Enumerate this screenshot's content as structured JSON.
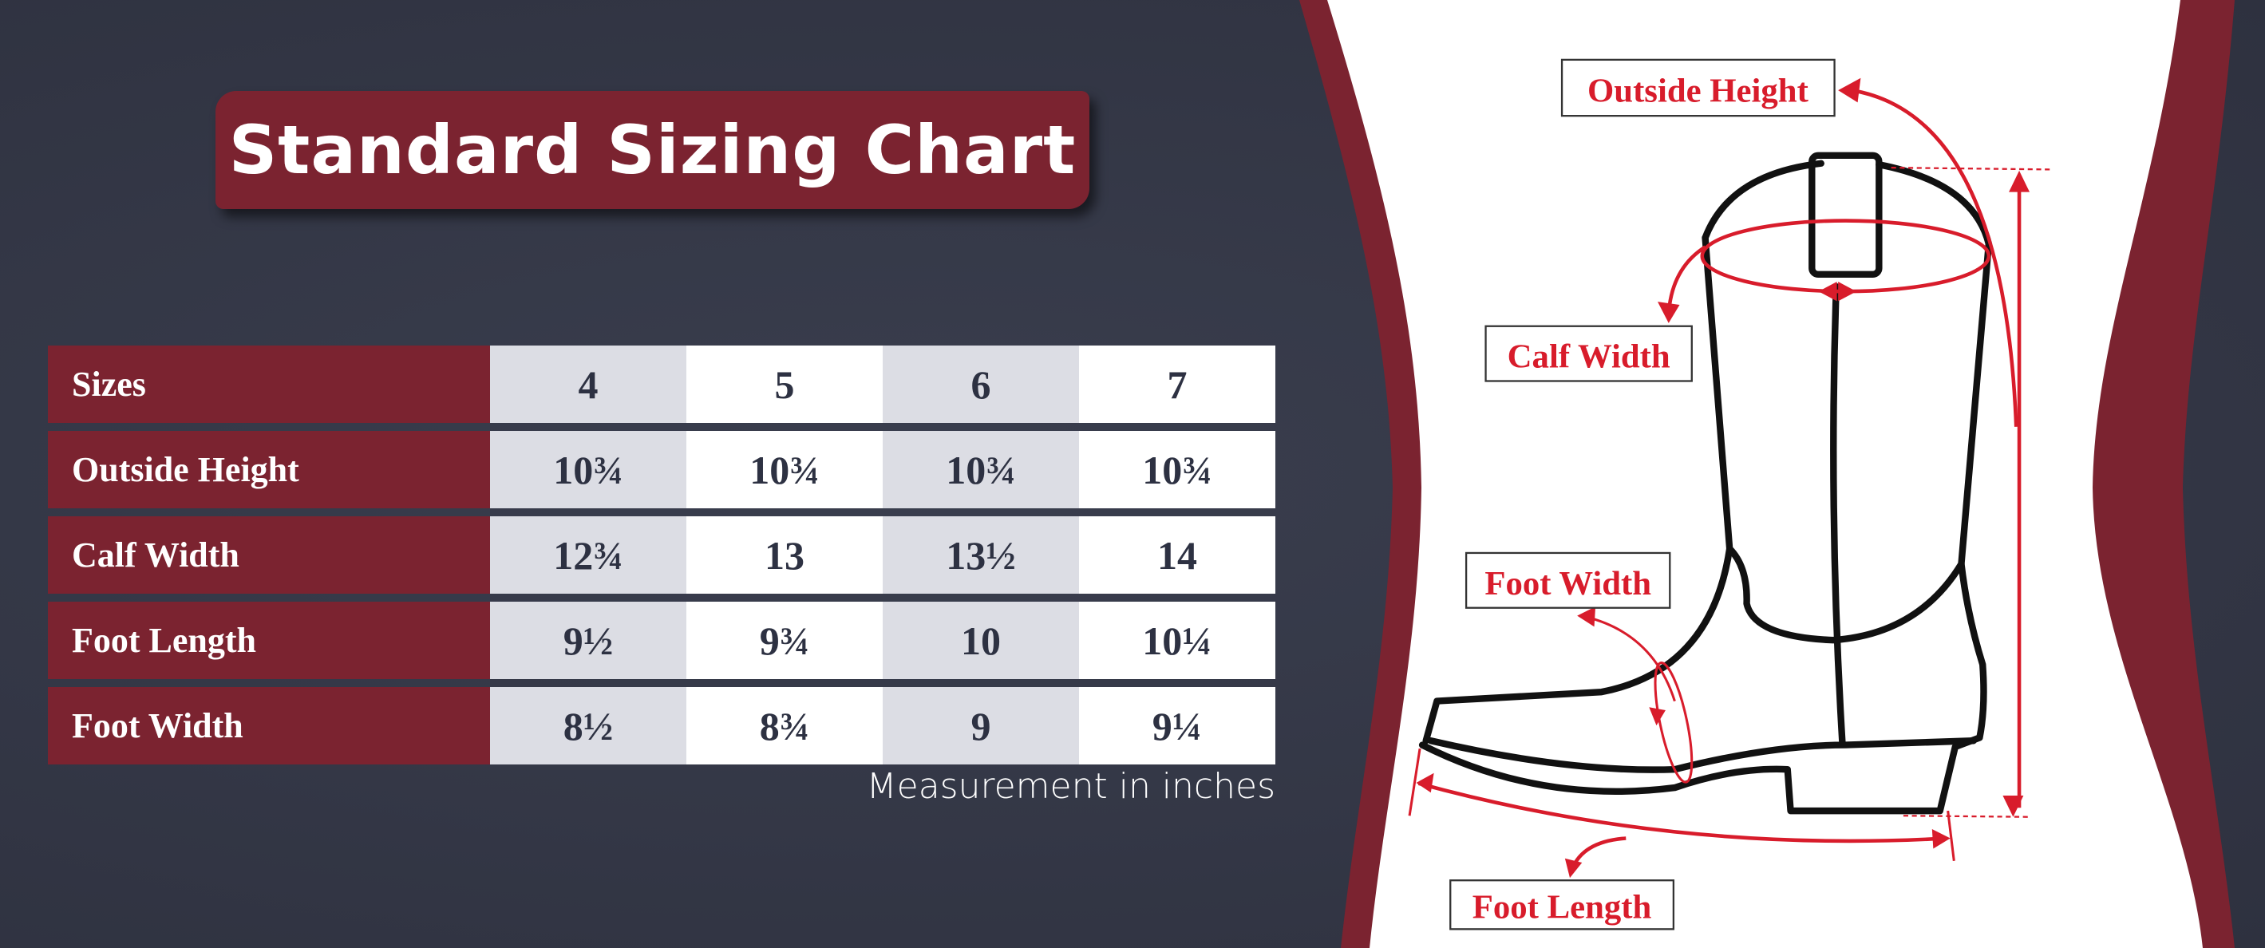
{
  "title": "Standard Sizing Chart",
  "table": {
    "header": {
      "label": "Sizes",
      "sizes": [
        "4",
        "5",
        "6",
        "7"
      ]
    },
    "rows": [
      {
        "label": "Outside Height",
        "values": [
          "10¾",
          "10¾",
          "10¾",
          "10¾"
        ]
      },
      {
        "label": "Calf Width",
        "values": [
          "12¾",
          "13",
          "13½",
          "14"
        ]
      },
      {
        "label": "Foot Length",
        "values": [
          "9½",
          "9¾",
          "10",
          "10¼"
        ]
      },
      {
        "label": "Foot Width",
        "values": [
          "8½",
          "8¾",
          "9",
          "9¼"
        ]
      }
    ]
  },
  "note": "Measurement in inches",
  "diagram": {
    "labels": {
      "outside_height": "Outside Height",
      "calf_width": "Calf Width",
      "foot_width": "Foot Width",
      "foot_length": "Foot Length"
    }
  },
  "colors": {
    "maroon": "#7b2330",
    "background": "#333645",
    "annotation_red": "#d81c2b",
    "text_dark": "#2d3142"
  }
}
